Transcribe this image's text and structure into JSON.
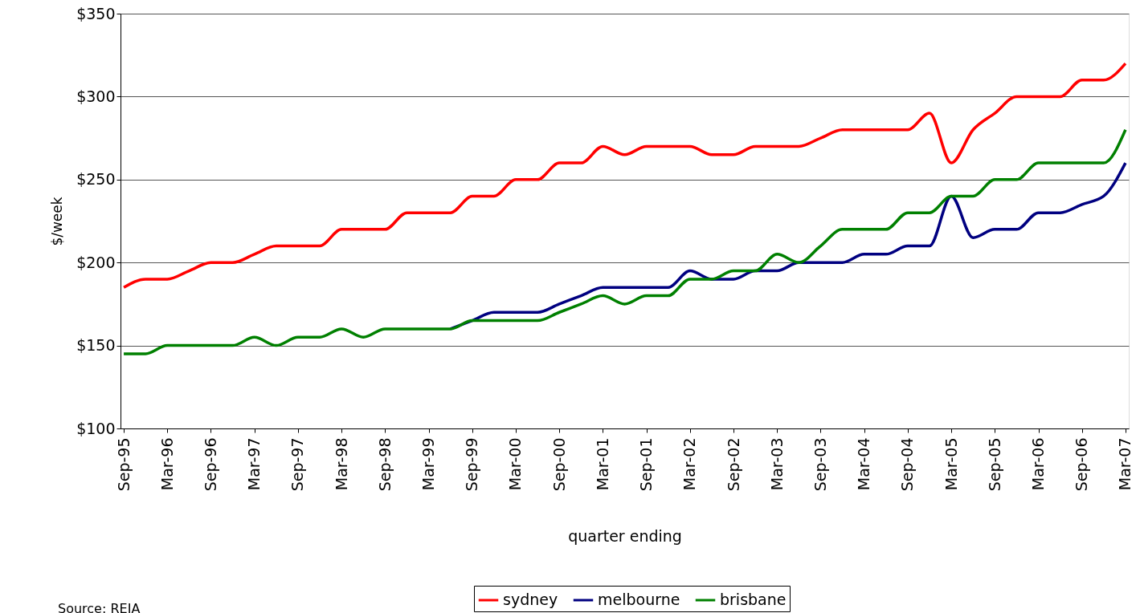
{
  "chart_data": {
    "type": "line",
    "xlabel": "quarter ending",
    "ylabel": "$/week",
    "categories": [
      "Sep-95",
      null,
      "Mar-96",
      null,
      "Sep-96",
      null,
      "Mar-97",
      null,
      "Sep-97",
      null,
      "Mar-98",
      null,
      "Sep-98",
      null,
      "Mar-99",
      null,
      "Sep-99",
      null,
      "Mar-00",
      null,
      "Sep-00",
      null,
      "Mar-01",
      null,
      "Sep-01",
      null,
      "Mar-02",
      null,
      "Sep-02",
      null,
      "Mar-03",
      null,
      "Sep-03",
      null,
      "Mar-04",
      null,
      "Sep-04",
      null,
      "Mar-05",
      null,
      "Sep-05",
      null,
      "Mar-06",
      null,
      "Sep-06",
      null,
      "Mar-07"
    ],
    "series": [
      {
        "name": "sydney",
        "color": "#ff0000",
        "values": [
          185,
          190,
          190,
          195,
          200,
          200,
          205,
          210,
          210,
          210,
          220,
          220,
          220,
          230,
          230,
          230,
          240,
          240,
          250,
          250,
          260,
          260,
          270,
          265,
          270,
          270,
          270,
          265,
          265,
          270,
          270,
          270,
          275,
          280,
          280,
          280,
          280,
          290,
          260,
          280,
          290,
          300,
          300,
          300,
          310,
          310,
          320
        ]
      },
      {
        "name": "melbourne",
        "color": "#000080",
        "values": [
          null,
          null,
          null,
          null,
          null,
          null,
          null,
          null,
          null,
          null,
          null,
          null,
          null,
          null,
          null,
          160,
          165,
          170,
          170,
          170,
          175,
          180,
          185,
          185,
          185,
          185,
          195,
          190,
          190,
          195,
          195,
          200,
          200,
          200,
          205,
          205,
          210,
          210,
          240,
          215,
          220,
          220,
          230,
          230,
          235,
          240,
          260
        ]
      },
      {
        "name": "brisbane",
        "color": "#008000",
        "values": [
          145,
          145,
          150,
          150,
          150,
          150,
          155,
          150,
          155,
          155,
          160,
          155,
          160,
          160,
          160,
          160,
          165,
          165,
          165,
          165,
          170,
          175,
          180,
          175,
          180,
          180,
          190,
          190,
          195,
          195,
          205,
          200,
          210,
          220,
          220,
          220,
          230,
          230,
          240,
          240,
          250,
          250,
          260,
          260,
          260,
          260,
          280
        ]
      }
    ],
    "ylim": [
      100,
      350
    ],
    "yticks": [
      {
        "value": 100,
        "label": "$100"
      },
      {
        "value": 150,
        "label": "$150"
      },
      {
        "value": 200,
        "label": "$200"
      },
      {
        "value": 250,
        "label": "$250"
      },
      {
        "value": 300,
        "label": "$300"
      },
      {
        "value": 350,
        "label": "$350"
      }
    ],
    "grid": "y",
    "legend": "bottom",
    "line_style": "solid",
    "annotations": [
      "Source: REIA"
    ]
  }
}
